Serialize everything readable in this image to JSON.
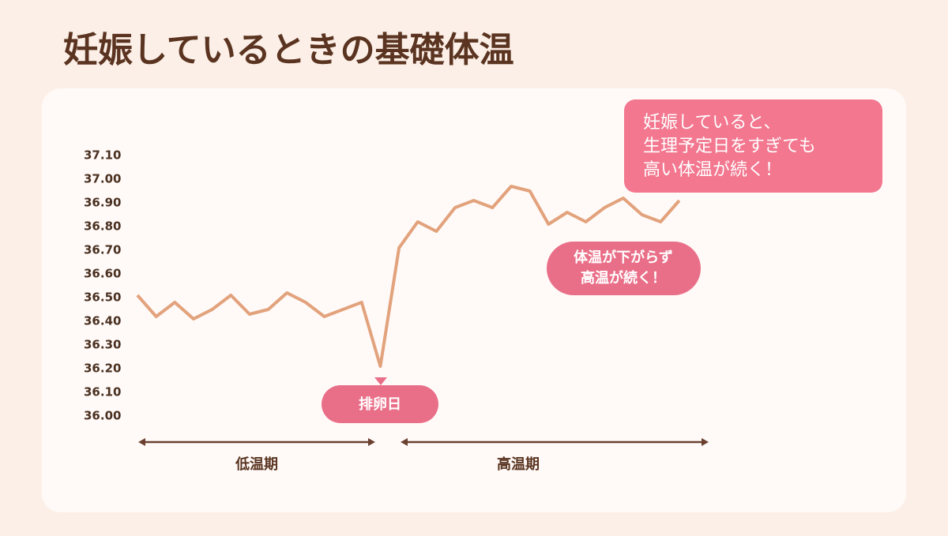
{
  "chart_data": {
    "type": "line",
    "title": "妊娠しているときの基礎体温",
    "categories": [
      null,
      null,
      null,
      null,
      null,
      null,
      null,
      null,
      null,
      null,
      null,
      null,
      null,
      null,
      null,
      null,
      null,
      null,
      null,
      null,
      null,
      null,
      null,
      null,
      null,
      null,
      null,
      null,
      null,
      null
    ],
    "series": [
      {
        "color": "#e2a27c",
        "values": [
          36.51,
          36.42,
          36.48,
          36.41,
          36.45,
          36.51,
          36.43,
          36.45,
          36.52,
          36.48,
          36.42,
          36.45,
          36.48,
          36.21,
          36.71,
          36.82,
          36.78,
          36.88,
          36.91,
          36.88,
          36.97,
          36.95,
          36.81,
          36.86,
          36.82,
          36.88,
          36.92,
          36.85,
          36.82,
          36.91
        ]
      }
    ],
    "ylim": [
      36.0,
      37.1
    ],
    "yticks": [
      {
        "value": 36.0,
        "label": "36.00"
      },
      {
        "value": 36.1,
        "label": "36.10"
      },
      {
        "value": 36.2,
        "label": "36.20"
      },
      {
        "value": 36.3,
        "label": "36.30"
      },
      {
        "value": 36.4,
        "label": "36.40"
      },
      {
        "value": 36.5,
        "label": "36.50"
      },
      {
        "value": 36.6,
        "label": "36.60"
      },
      {
        "value": 36.7,
        "label": "36.70"
      },
      {
        "value": 36.8,
        "label": "36.80"
      },
      {
        "value": 36.9,
        "label": "36.90"
      },
      {
        "value": 37.0,
        "label": "37.00"
      },
      {
        "value": 37.1,
        "label": "37.10"
      }
    ],
    "grid": false,
    "annotations": {
      "ovulation": "排卵日",
      "callout_top": [
        "妊娠していると、",
        "生理予定日をすぎても",
        "高い体温が続く！"
      ],
      "callout_mid": [
        "体温が下がらず",
        "高温が続く！"
      ],
      "low_period": "低温期",
      "high_period": "高温期"
    }
  }
}
